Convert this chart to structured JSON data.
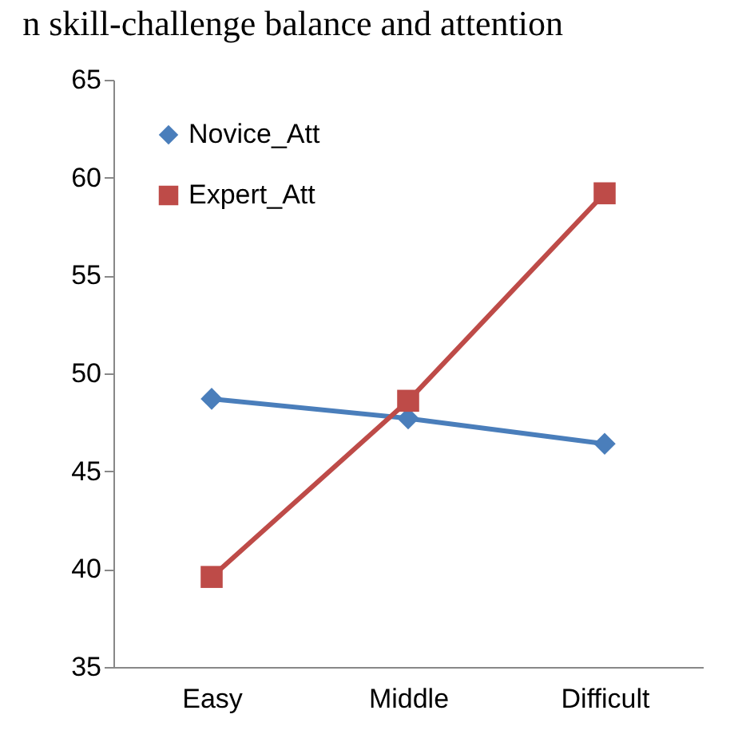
{
  "chart_data": {
    "type": "line",
    "title": "n skill-challenge balance and attention",
    "categories": [
      "Easy",
      "Middle",
      "Difficult"
    ],
    "series": [
      {
        "name": "Novice_Att",
        "color": "#4a7ebb",
        "marker": "diamond",
        "values": [
          48.7,
          47.7,
          46.4
        ]
      },
      {
        "name": "Expert_Att",
        "color": "#be4b48",
        "marker": "square",
        "values": [
          39.6,
          48.6,
          59.2
        ]
      }
    ],
    "ylim": [
      35,
      65
    ],
    "yticks": [
      35,
      40,
      45,
      50,
      55,
      60,
      65
    ],
    "grid": false,
    "legend": "top left"
  }
}
